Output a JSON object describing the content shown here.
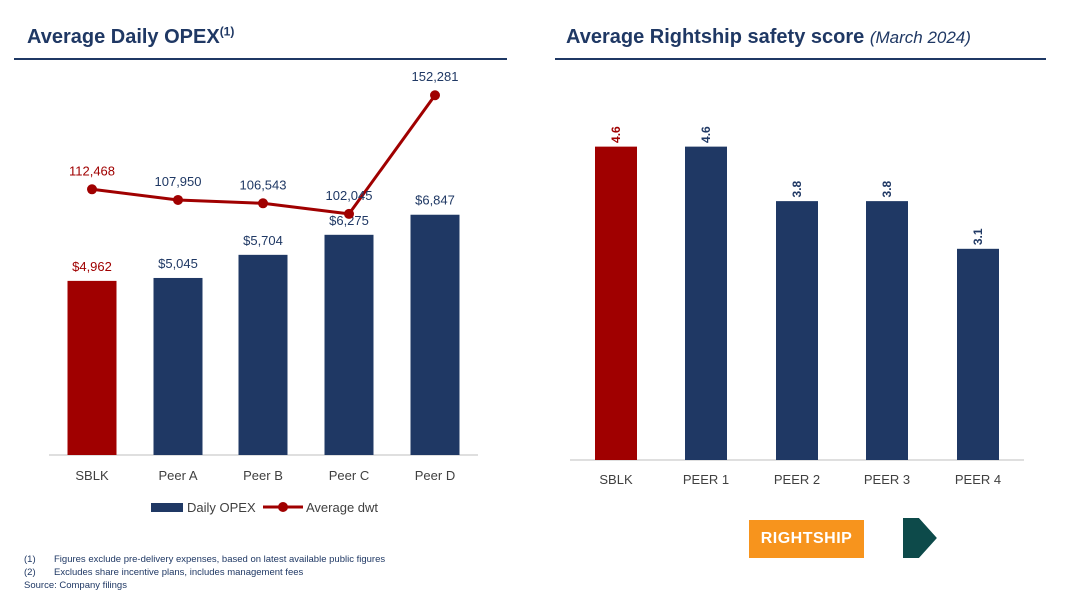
{
  "left_title": {
    "text": "Average Daily OPEX",
    "sup": "(1)"
  },
  "right_title": {
    "text": "Average Rightship safety score",
    "sub": "(March 2024)"
  },
  "chart_data": [
    {
      "type": "bar",
      "title": "Average Daily OPEX",
      "categories": [
        "SBLK",
        "Peer A",
        "Peer B",
        "Peer C",
        "Peer D"
      ],
      "series": [
        {
          "name": "Daily OPEX",
          "type": "bar",
          "values": [
            4962,
            5045,
            5704,
            6275,
            6847
          ],
          "labels": [
            "$4,962",
            "$5,045",
            "$5,704",
            "$6,275",
            "$6,847"
          ]
        },
        {
          "name": "Average dwt",
          "type": "line",
          "values": [
            112468,
            107950,
            106543,
            102045,
            152281
          ],
          "labels": [
            "112,468",
            "107,950",
            "106,543",
            "102,045",
            "152,281"
          ]
        }
      ],
      "bar_ylim": [
        0,
        11000
      ],
      "line_ylim": [
        0,
        160000
      ],
      "highlight_index": 0,
      "legend": [
        "Daily OPEX",
        "Average dwt"
      ]
    },
    {
      "type": "bar",
      "title": "Average Rightship safety score",
      "subtitle": "(March 2024)",
      "categories": [
        "SBLK",
        "PEER 1",
        "PEER 2",
        "PEER 3",
        "PEER 4"
      ],
      "values": [
        4.6,
        4.6,
        3.8,
        3.8,
        3.1
      ],
      "labels": [
        "4.6",
        "4.6",
        "3.8",
        "3.8",
        "3.1"
      ],
      "ylim": [
        0,
        4.8
      ],
      "highlight_index": 0
    }
  ],
  "colors": {
    "navy": "#1f3864",
    "red": "#a00000",
    "axis": "#bfbfbf",
    "orange": "#f7941d",
    "teal": "#0d4a4a"
  },
  "footnotes": [
    {
      "num": "(1)",
      "text": "Figures exclude pre-delivery expenses, based on latest available public figures"
    },
    {
      "num": "(2)",
      "text": "Excludes share incentive plans, includes management fees"
    }
  ],
  "source": "Source: Company filings",
  "rightship_logo": "RIGHTSHIP"
}
